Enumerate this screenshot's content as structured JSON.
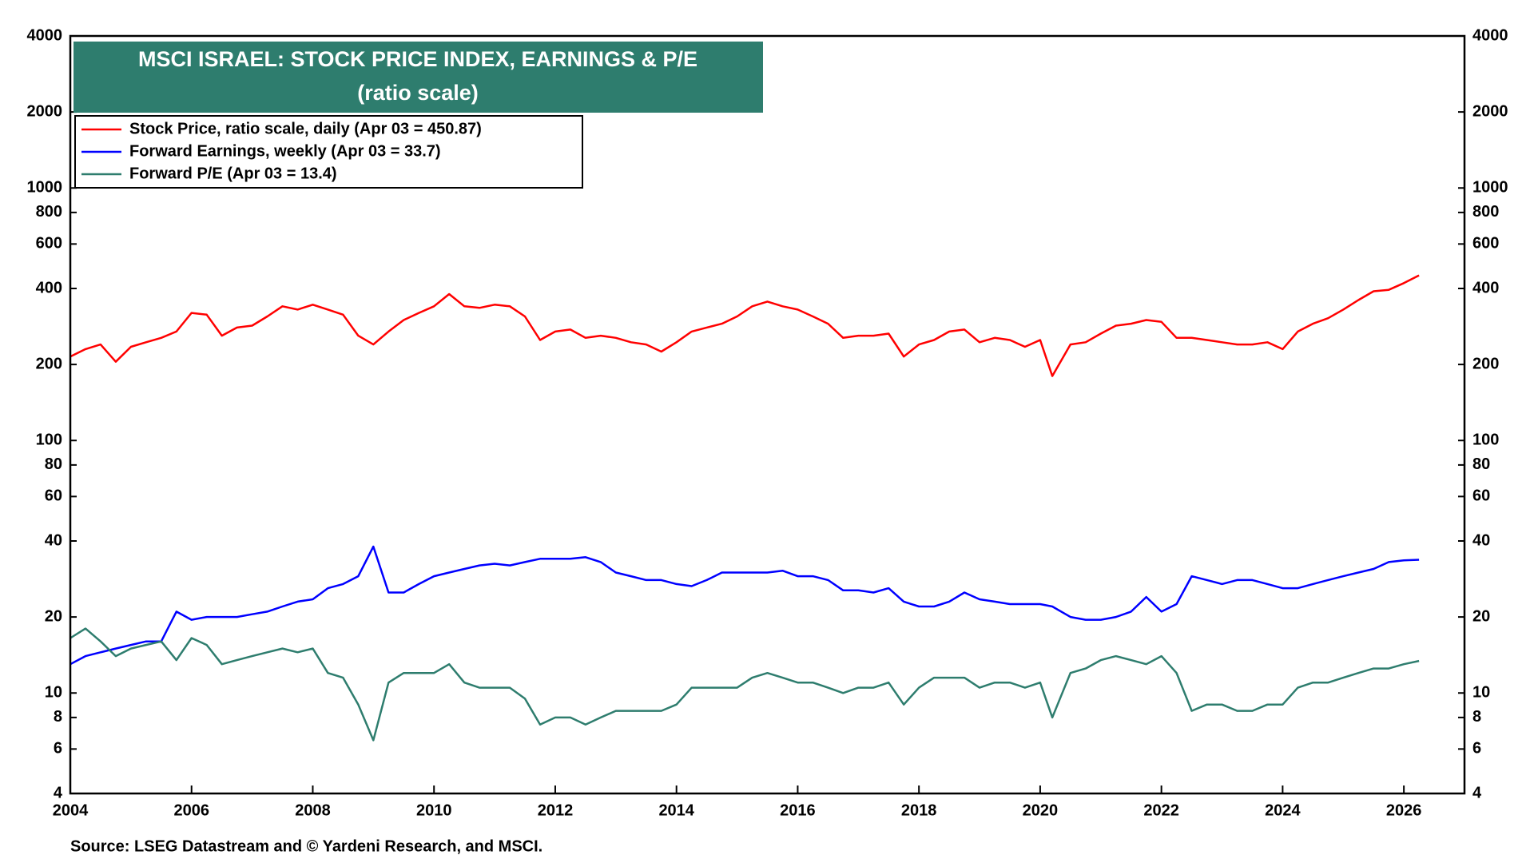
{
  "chart_data": {
    "type": "line",
    "title": "MSCI ISRAEL: STOCK PRICE INDEX, EARNINGS & P/E",
    "subtitle": "(ratio scale)",
    "source": "Source: LSEG Datastream and © Yardeni Research, and MSCI.",
    "log_scale": true,
    "xlim": [
      2004,
      2027
    ],
    "xticks": [
      2004,
      2006,
      2008,
      2010,
      2012,
      2014,
      2016,
      2018,
      2020,
      2022,
      2024,
      2026
    ],
    "ylim": [
      4,
      4000
    ],
    "yticks": [
      4,
      6,
      8,
      10,
      20,
      40,
      60,
      80,
      100,
      200,
      400,
      600,
      800,
      1000,
      2000,
      4000
    ],
    "y2lim": [
      4,
      4000
    ],
    "y2ticks": [
      4,
      6,
      8,
      10,
      20,
      40,
      60,
      80,
      100,
      200,
      400,
      600,
      800,
      1000,
      2000,
      4000
    ],
    "legend_position": "upper left",
    "x": [
      2004.0,
      2004.25,
      2004.5,
      2004.75,
      2005.0,
      2005.25,
      2005.5,
      2005.75,
      2006.0,
      2006.25,
      2006.5,
      2006.75,
      2007.0,
      2007.25,
      2007.5,
      2007.75,
      2008.0,
      2008.25,
      2008.5,
      2008.75,
      2009.0,
      2009.25,
      2009.5,
      2009.75,
      2010.0,
      2010.25,
      2010.5,
      2010.75,
      2011.0,
      2011.25,
      2011.5,
      2011.75,
      2012.0,
      2012.25,
      2012.5,
      2012.75,
      2013.0,
      2013.25,
      2013.5,
      2013.75,
      2014.0,
      2014.25,
      2014.5,
      2014.75,
      2015.0,
      2015.25,
      2015.5,
      2015.75,
      2016.0,
      2016.25,
      2016.5,
      2016.75,
      2017.0,
      2017.25,
      2017.5,
      2017.75,
      2018.0,
      2018.25,
      2018.5,
      2018.75,
      2019.0,
      2019.25,
      2019.5,
      2019.75,
      2020.0,
      2020.2,
      2020.5,
      2020.75,
      2021.0,
      2021.25,
      2021.5,
      2021.75,
      2022.0,
      2022.25,
      2022.5,
      2022.75,
      2023.0,
      2023.25,
      2023.5,
      2023.75,
      2024.0,
      2024.25,
      2024.5,
      2024.75,
      2025.0,
      2025.25,
      2025.5,
      2025.75,
      2026.0,
      2026.25
    ],
    "series": [
      {
        "name": "Stock Price, ratio scale, daily (Apr 03 = 450.87)",
        "color": "#ff0000",
        "values": [
          215,
          230,
          240,
          205,
          235,
          245,
          255,
          270,
          320,
          315,
          260,
          280,
          285,
          310,
          340,
          330,
          345,
          330,
          315,
          260,
          240,
          270,
          300,
          320,
          340,
          380,
          340,
          335,
          345,
          340,
          310,
          250,
          270,
          275,
          255,
          260,
          255,
          245,
          240,
          225,
          245,
          270,
          280,
          290,
          310,
          340,
          355,
          340,
          330,
          310,
          290,
          255,
          260,
          260,
          265,
          215,
          240,
          250,
          270,
          275,
          245,
          255,
          250,
          235,
          250,
          180,
          240,
          245,
          265,
          285,
          290,
          300,
          295,
          255,
          255,
          250,
          245,
          240,
          240,
          245,
          230,
          270,
          290,
          305,
          330,
          360,
          390,
          395,
          420,
          450.87
        ]
      },
      {
        "name": "Forward Earnings, weekly (Apr 03 = 33.7)",
        "color": "#0000ff",
        "values": [
          13,
          14,
          14.5,
          15,
          15.5,
          16,
          16,
          21,
          19.5,
          20,
          20,
          20,
          20.5,
          21,
          22,
          23,
          23.5,
          26,
          27,
          29,
          38,
          25,
          25,
          27,
          29,
          30,
          31,
          32,
          32.5,
          32,
          33,
          34,
          34,
          34,
          34.5,
          33,
          30,
          29,
          28,
          28,
          27,
          26.5,
          28,
          30,
          30,
          30,
          30,
          30.5,
          29,
          29,
          28,
          25.5,
          25.5,
          25,
          26,
          23,
          22,
          22,
          23,
          25,
          23.5,
          23,
          22.5,
          22.5,
          22.5,
          22,
          20,
          19.5,
          19.5,
          20,
          21,
          24,
          21,
          22.5,
          29,
          28,
          27,
          28,
          28,
          27,
          26,
          26,
          27,
          28,
          29,
          30,
          31,
          33,
          33.5,
          33.7
        ]
      },
      {
        "name": "Forward P/E (Apr 03 = 13.4)",
        "color": "#2e7d6e",
        "values": [
          16.5,
          18,
          16,
          14,
          15,
          15.5,
          16,
          13.5,
          16.5,
          15.5,
          13,
          13.5,
          14,
          14.5,
          15,
          14.5,
          15,
          12,
          11.5,
          9,
          6.5,
          11,
          12,
          12,
          12,
          13,
          11,
          10.5,
          10.5,
          10.5,
          9.5,
          7.5,
          8,
          8,
          7.5,
          8,
          8.5,
          8.5,
          8.5,
          8.5,
          9,
          10.5,
          10.5,
          10.5,
          10.5,
          11.5,
          12,
          11.5,
          11,
          11,
          10.5,
          10,
          10.5,
          10.5,
          11,
          9,
          10.5,
          11.5,
          11.5,
          11.5,
          10.5,
          11,
          11,
          10.5,
          11,
          8,
          12,
          12.5,
          13.5,
          14,
          13.5,
          13,
          14,
          12,
          8.5,
          9,
          9,
          8.5,
          8.5,
          9,
          9,
          10.5,
          11,
          11,
          11.5,
          12,
          12.5,
          12.5,
          13,
          13.4
        ]
      }
    ]
  }
}
